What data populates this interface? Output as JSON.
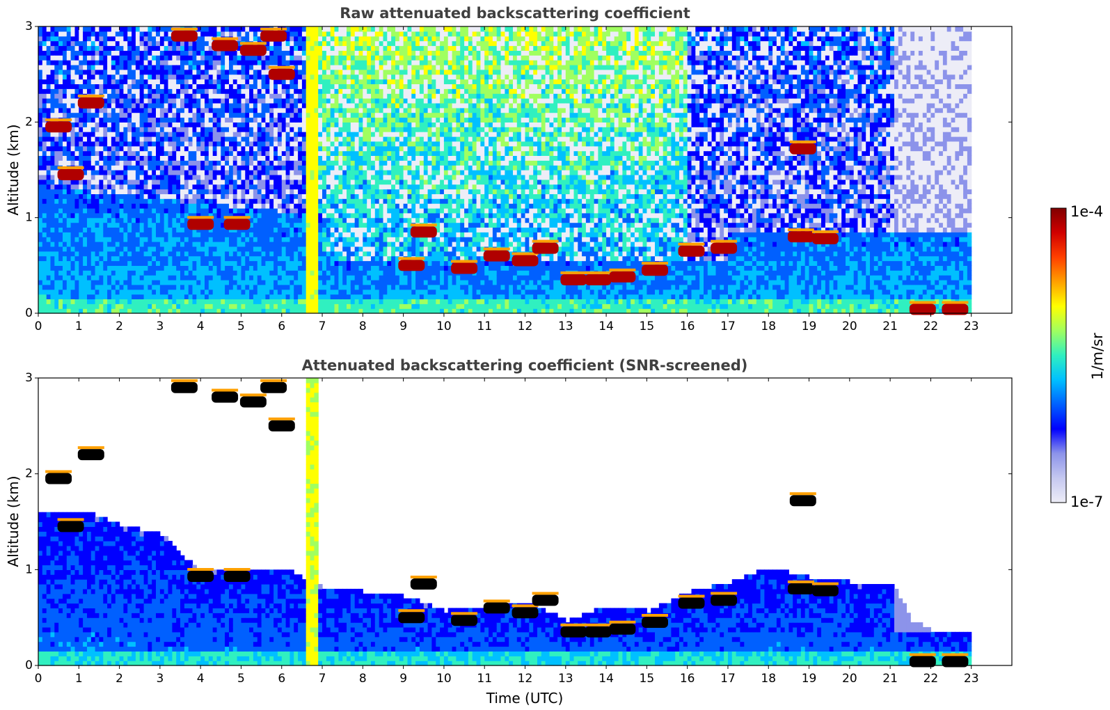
{
  "chart_data": [
    {
      "type": "heatmap",
      "title": "Raw attenuated backscattering coefficient",
      "xlabel": "",
      "ylabel": "Altitude (km)",
      "xlim": [
        0,
        24
      ],
      "ylim": [
        0,
        3
      ],
      "xticks": [
        "0",
        "1",
        "2",
        "3",
        "4",
        "5",
        "6",
        "7",
        "8",
        "9",
        "10",
        "11",
        "12",
        "13",
        "14",
        "15",
        "16",
        "17",
        "18",
        "19",
        "20",
        "21",
        "22",
        "23"
      ],
      "yticks": [
        "0",
        "1",
        "2",
        "3"
      ],
      "data_extent_hours": [
        0,
        23
      ],
      "mode": "raw",
      "cloud_base_km": [
        {
          "t": 0.5,
          "z": 1.95
        },
        {
          "t": 0.8,
          "z": 1.45
        },
        {
          "t": 1.3,
          "z": 2.2
        },
        {
          "t": 3.6,
          "z": 2.9
        },
        {
          "t": 4.0,
          "z": 0.93
        },
        {
          "t": 4.6,
          "z": 2.8
        },
        {
          "t": 4.9,
          "z": 0.93
        },
        {
          "t": 5.3,
          "z": 2.75
        },
        {
          "t": 5.8,
          "z": 2.9
        },
        {
          "t": 6.0,
          "z": 2.5
        },
        {
          "t": 9.2,
          "z": 0.5
        },
        {
          "t": 9.5,
          "z": 0.85
        },
        {
          "t": 10.5,
          "z": 0.47
        },
        {
          "t": 11.3,
          "z": 0.6
        },
        {
          "t": 12.0,
          "z": 0.55
        },
        {
          "t": 12.5,
          "z": 0.68
        },
        {
          "t": 13.2,
          "z": 0.35
        },
        {
          "t": 13.8,
          "z": 0.35
        },
        {
          "t": 14.4,
          "z": 0.38
        },
        {
          "t": 15.2,
          "z": 0.45
        },
        {
          "t": 16.1,
          "z": 0.65
        },
        {
          "t": 16.9,
          "z": 0.68
        },
        {
          "t": 18.8,
          "z": 0.8
        },
        {
          "t": 19.4,
          "z": 0.78
        },
        {
          "t": 18.85,
          "z": 1.72
        },
        {
          "t": 21.8,
          "z": 0.04
        },
        {
          "t": 22.6,
          "z": 0.04
        }
      ]
    },
    {
      "type": "heatmap",
      "title": "Attenuated backscattering coefficient (SNR-screened)",
      "xlabel": "Time (UTC)",
      "ylabel": "Altitude (km)",
      "xlim": [
        0,
        24
      ],
      "ylim": [
        0,
        3
      ],
      "xticks": [
        "0",
        "1",
        "2",
        "3",
        "4",
        "5",
        "6",
        "7",
        "8",
        "9",
        "10",
        "11",
        "12",
        "13",
        "14",
        "15",
        "16",
        "17",
        "18",
        "19",
        "20",
        "21",
        "22",
        "23"
      ],
      "yticks": [
        "0",
        "1",
        "2",
        "3"
      ],
      "data_extent_hours": [
        0,
        23
      ],
      "mode": "screened",
      "boundary_layer_top_km": [
        {
          "t": 0,
          "z": 1.6
        },
        {
          "t": 1,
          "z": 1.6
        },
        {
          "t": 2,
          "z": 1.45
        },
        {
          "t": 3,
          "z": 1.35
        },
        {
          "t": 3.6,
          "z": 1.1
        },
        {
          "t": 4,
          "z": 0.95
        },
        {
          "t": 5,
          "z": 1.0
        },
        {
          "t": 6,
          "z": 1.0
        },
        {
          "t": 7,
          "z": 0.8
        },
        {
          "t": 8,
          "z": 0.75
        },
        {
          "t": 9,
          "z": 0.7
        },
        {
          "t": 10,
          "z": 0.55
        },
        {
          "t": 11,
          "z": 0.6
        },
        {
          "t": 12,
          "z": 0.65
        },
        {
          "t": 13,
          "z": 0.45
        },
        {
          "t": 14,
          "z": 0.6
        },
        {
          "t": 15,
          "z": 0.55
        },
        {
          "t": 16,
          "z": 0.75
        },
        {
          "t": 17,
          "z": 0.85
        },
        {
          "t": 18,
          "z": 1.0
        },
        {
          "t": 19,
          "z": 0.9
        },
        {
          "t": 20,
          "z": 0.85
        },
        {
          "t": 21,
          "z": 0.85
        },
        {
          "t": 21.5,
          "z": 0.45
        },
        {
          "t": 22,
          "z": 0.35
        },
        {
          "t": 23,
          "z": 0.3
        }
      ]
    }
  ],
  "colorbar": {
    "label": "1/m/sr",
    "max_label": "1e-4",
    "min_label": "1e-7",
    "colormap": "jet",
    "colors": [
      "#ededf7",
      "#c5c8f0",
      "#8c93ea",
      "#0000ff",
      "#0060ff",
      "#00c0ff",
      "#30f0c0",
      "#a0ff60",
      "#ffff00",
      "#ffa000",
      "#ff4000",
      "#d00000",
      "#800000"
    ]
  }
}
